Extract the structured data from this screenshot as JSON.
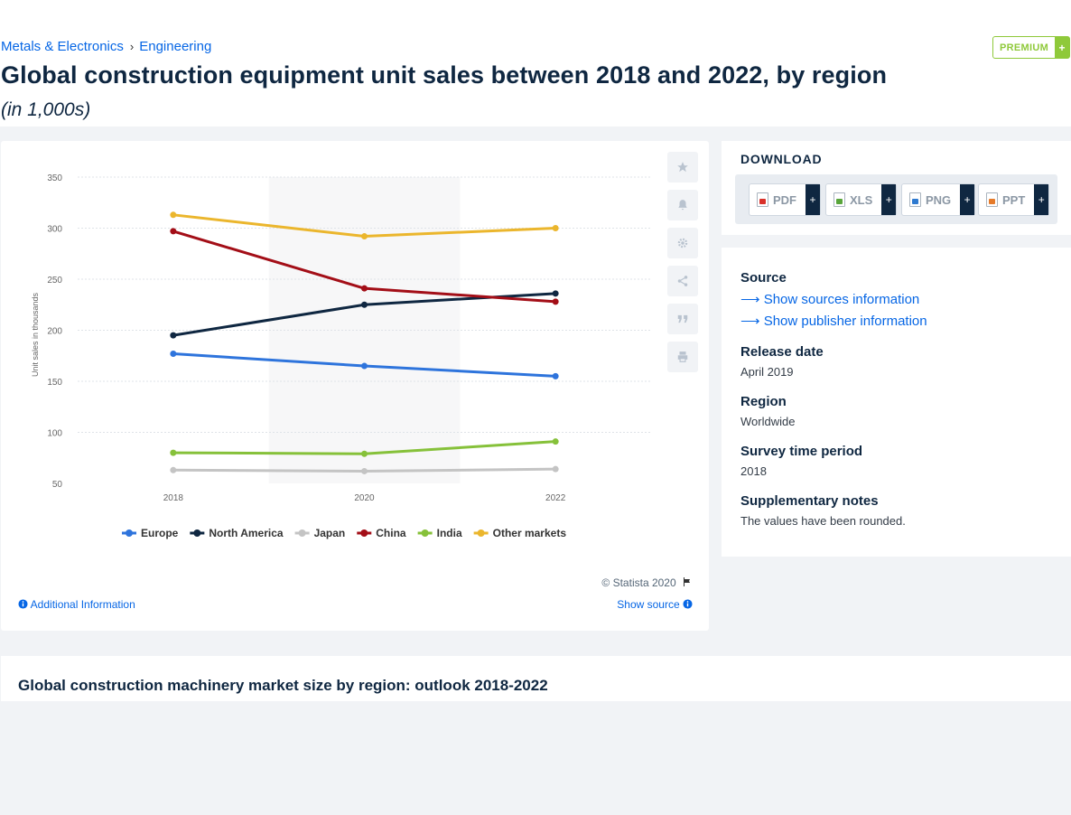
{
  "breadcrumb": {
    "item1": "Metals & Electronics",
    "sep": "›",
    "item2": "Engineering"
  },
  "premium": {
    "label": "PREMIUM",
    "plus": "+"
  },
  "page": {
    "title": "Global construction equipment unit sales between 2018 and 2022, by region",
    "subtitle": "(in 1,000s)"
  },
  "tools": [
    "star-icon",
    "bell-icon",
    "gear-icon",
    "share-icon",
    "quote-icon",
    "print-icon"
  ],
  "chart_data": {
    "type": "line",
    "x": [
      2018,
      2020,
      2022
    ],
    "xticks": [
      "2018",
      "2020",
      "2022"
    ],
    "ylabel": "Unit sales in thousands",
    "ylim": [
      50,
      350
    ],
    "yticks": [
      50,
      100,
      150,
      200,
      250,
      300,
      350
    ],
    "grid": true,
    "legend": "bottom",
    "series": [
      {
        "name": "Europe",
        "color": "#2e74dc",
        "values": [
          177,
          165,
          155
        ]
      },
      {
        "name": "North America",
        "color": "#0f2741",
        "values": [
          195,
          225,
          236
        ]
      },
      {
        "name": "Japan",
        "color": "#c4c4c4",
        "values": [
          63,
          62,
          64
        ]
      },
      {
        "name": "China",
        "color": "#a30e17",
        "values": [
          297,
          241,
          228
        ]
      },
      {
        "name": "India",
        "color": "#86c13a",
        "values": [
          80,
          79,
          91
        ]
      },
      {
        "name": "Other markets",
        "color": "#ebb62d",
        "values": [
          313,
          292,
          300
        ]
      }
    ]
  },
  "chart_footer": {
    "copyright": "© Statista 2020",
    "additional_info": "Additional Information",
    "show_source": "Show source"
  },
  "download": {
    "title": "DOWNLOAD",
    "buttons": [
      {
        "label": "PDF",
        "color": "#d9312a"
      },
      {
        "label": "XLS",
        "color": "#58a53a"
      },
      {
        "label": "PNG",
        "color": "#2f7ad0"
      },
      {
        "label": "PPT",
        "color": "#e57b2b"
      }
    ],
    "plus": "+"
  },
  "source": {
    "heading": "Source",
    "link1": "Show sources information",
    "link2": "Show publisher information",
    "release_heading": "Release date",
    "release_value": "April 2019",
    "region_heading": "Region",
    "region_value": "Worldwide",
    "survey_heading": "Survey time period",
    "survey_value": "2018",
    "notes_heading": "Supplementary notes",
    "notes_value": "The values have been rounded."
  },
  "related": {
    "title": "Global construction machinery market size by region: outlook 2018-2022"
  }
}
